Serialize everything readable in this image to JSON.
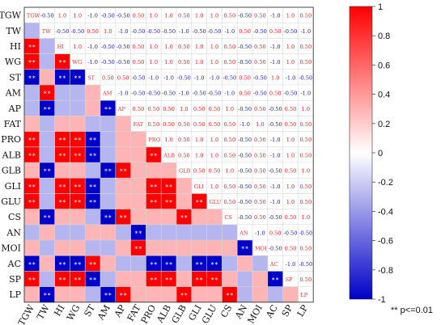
{
  "chart_data": {
    "type": "heatmap",
    "variables": [
      "TGW",
      "TW",
      "HI",
      "WG",
      "ST",
      "AM",
      "AP",
      "FAT",
      "PRO",
      "ALB",
      "GLB",
      "GLI",
      "GLU",
      "CS",
      "AN",
      "MOI",
      "AC",
      "SP",
      "LP"
    ],
    "upper_values": [
      [
        "",
        "-0.50",
        "1.0",
        "1.0",
        "-1.0",
        "-0.50",
        "-0.50",
        "0.50",
        "1.0",
        "1.0",
        "0.50",
        "1.0",
        "1.0",
        "0.50",
        "-0.50",
        "0.50",
        "-1.0",
        "1.0",
        "0.50"
      ],
      [
        "",
        "",
        "-0.50",
        "-0.50",
        "0.50",
        "1.0",
        "-1.0",
        "-0.50",
        "-0.50",
        "-0.50",
        "-1.0",
        "-0.50",
        "-0.50",
        "-1.0",
        "0.50",
        "-0.50",
        "0.50",
        "-0.50",
        "-1.0"
      ],
      [
        "",
        "",
        "",
        "1.0",
        "-1.0",
        "-0.50",
        "-0.50",
        "0.50",
        "1.0",
        "1.0",
        "0.50",
        "1.0",
        "1.0",
        "0.50",
        "-0.50",
        "0.50",
        "-1.0",
        "1.0",
        "0.50"
      ],
      [
        "",
        "",
        "",
        "",
        "-1.0",
        "-0.50",
        "-0.50",
        "0.50",
        "1.0",
        "1.0",
        "0.50",
        "1.0",
        "1.0",
        "0.50",
        "-0.50",
        "0.50",
        "-1.0",
        "1.0",
        "0.50"
      ],
      [
        "",
        "",
        "",
        "",
        "",
        "0.50",
        "0.50",
        "-0.50",
        "-1.0",
        "-1.0",
        "-0.50",
        "-1.0",
        "-1.0",
        "-0.50",
        "0.50",
        "-0.50",
        "1.0",
        "-1.0",
        "-0.50"
      ],
      [
        "",
        "",
        "",
        "",
        "",
        "",
        "-1.0",
        "-0.50",
        "-0.50",
        "-0.50",
        "-1.0",
        "-0.50",
        "-0.50",
        "-1.0",
        "0.50",
        "-0.50",
        "0.50",
        "-0.50",
        "-1.0"
      ],
      [
        "",
        "",
        "",
        "",
        "",
        "",
        "",
        "0.50",
        "0.50",
        "0.50",
        "1.0",
        "0.50",
        "0.50",
        "1.0",
        "-0.50",
        "0.50",
        "-0.50",
        "0.50",
        "1.0"
      ],
      [
        "",
        "",
        "",
        "",
        "",
        "",
        "",
        "",
        "0.50",
        "0.50",
        "0.50",
        "0.50",
        "0.50",
        "0.50",
        "-1.0",
        "1.0",
        "-0.50",
        "0.50",
        "0.50"
      ],
      [
        "",
        "",
        "",
        "",
        "",
        "",
        "",
        "",
        "",
        "1.0",
        "0.50",
        "1.0",
        "1.0",
        "0.50",
        "-0.50",
        "0.50",
        "-1.0",
        "1.0",
        "0.50"
      ],
      [
        "",
        "",
        "",
        "",
        "",
        "",
        "",
        "",
        "",
        "",
        "0.50",
        "1.0",
        "1.0",
        "0.50",
        "-0.50",
        "0.50",
        "-1.0",
        "1.0",
        "0.50"
      ],
      [
        "",
        "",
        "",
        "",
        "",
        "",
        "",
        "",
        "",
        "",
        "",
        "0.50",
        "0.50",
        "1.0",
        "-0.50",
        "0.50",
        "-0.50",
        "0.50",
        "1.0"
      ],
      [
        "",
        "",
        "",
        "",
        "",
        "",
        "",
        "",
        "",
        "",
        "",
        "",
        "1.0",
        "0.50",
        "-0.50",
        "0.50",
        "-1.0",
        "1.0",
        "0.50"
      ],
      [
        "",
        "",
        "",
        "",
        "",
        "",
        "",
        "",
        "",
        "",
        "",
        "",
        "",
        "0.50",
        "-0.50",
        "0.50",
        "-1.0",
        "1.0",
        "0.50"
      ],
      [
        "",
        "",
        "",
        "",
        "",
        "",
        "",
        "",
        "",
        "",
        "",
        "",
        "",
        "",
        "-0.50",
        "0.50",
        "-0.50",
        "0.50",
        "1.0"
      ],
      [
        "",
        "",
        "",
        "",
        "",
        "",
        "",
        "",
        "",
        "",
        "",
        "",
        "",
        "",
        "",
        "-1.0",
        "0.50",
        "-0.50",
        "-0.50"
      ],
      [
        "",
        "",
        "",
        "",
        "",
        "",
        "",
        "",
        "",
        "",
        "",
        "",
        "",
        "",
        "",
        "",
        "-0.50",
        "0.50",
        "0.50"
      ],
      [
        "",
        "",
        "",
        "",
        "",
        "",
        "",
        "",
        "",
        "",
        "",
        "",
        "",
        "",
        "",
        "",
        "",
        "-1.0",
        "-0.50"
      ],
      [
        "",
        "",
        "",
        "",
        "",
        "",
        "",
        "",
        "",
        "",
        "",
        "",
        "",
        "",
        "",
        "",
        "",
        "",
        "0.50"
      ],
      [
        "",
        "",
        "",
        "",
        "",
        "",
        "",
        "",
        "",
        "",
        "",
        "",
        "",
        "",
        "",
        "",
        "",
        "",
        ""
      ]
    ],
    "colorbar": {
      "min": -1,
      "max": 1,
      "ticks": [
        "1",
        "0.8",
        "0.6",
        "0.4",
        "0.2",
        "0",
        "-0.2",
        "-0.4",
        "-0.6",
        "-0.8",
        "-1"
      ],
      "colors": {
        "positive": "#ff0000",
        "zero": "#ffffff",
        "negative": "#0000c8"
      }
    },
    "significance_marker": "**",
    "legend_note": "** p<=0.01"
  }
}
